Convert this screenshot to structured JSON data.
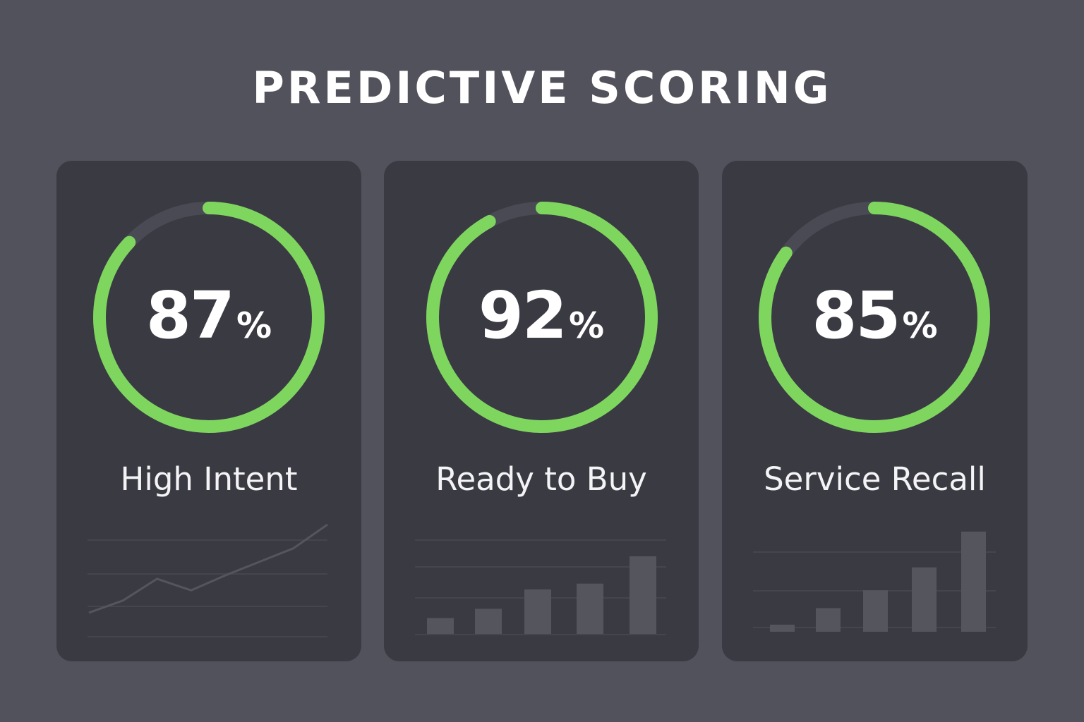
{
  "page": {
    "title": "PREDICTIVE SCORING"
  },
  "colors": {
    "background": "#52525c",
    "card": "#3a3a43",
    "accent": "#7fd65f",
    "track": "#4a4a54",
    "sparkline": "#55555e"
  },
  "cards": [
    {
      "score_value": "87",
      "score_unit": "%",
      "progress": 0.87,
      "label": "High Intent",
      "mini_chart": {
        "type": "line",
        "values": [
          0,
          18,
          50,
          33,
          55,
          75,
          95,
          130
        ]
      }
    },
    {
      "score_value": "92",
      "score_unit": "%",
      "progress": 0.92,
      "label": "Ready to Buy",
      "mini_chart": {
        "type": "bar",
        "values": [
          22,
          35,
          62,
          70,
          108
        ]
      }
    },
    {
      "score_value": "85",
      "score_unit": "%",
      "progress": 0.85,
      "label": "Service Recall",
      "mini_chart": {
        "type": "bar",
        "values": [
          10,
          33,
          58,
          90,
          140
        ]
      }
    }
  ]
}
